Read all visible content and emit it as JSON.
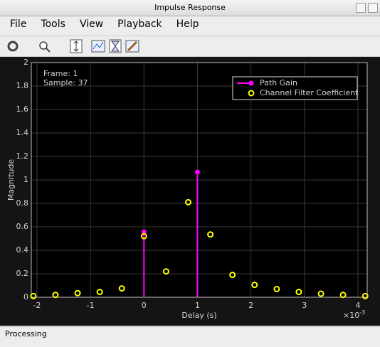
{
  "window": {
    "title": "Impulse Response",
    "menu": [
      "File",
      "Tools",
      "View",
      "Playback",
      "Help"
    ],
    "status": "Processing"
  },
  "chart_data": {
    "type": "stem",
    "x_label": "Delay (s)",
    "y_label": "Magnitude",
    "x_exponent_base": "×10",
    "x_exponent_power": "-3",
    "annotations": [
      "Frame: 1",
      "Sample: 37"
    ],
    "series": [
      {
        "name": "Path Gain",
        "color": "#ff00ff",
        "style": "stem",
        "x": [
          0,
          1
        ],
        "values": [
          0.557,
          1.067
        ]
      },
      {
        "name": "Channel Filter Coefficient",
        "color": "#ffff00",
        "style": "marker",
        "x": [
          -2.068,
          -1.654,
          -1.241,
          -0.827,
          -0.414,
          0,
          0.414,
          0.827,
          1.241,
          1.654,
          2.068,
          2.482,
          2.895,
          3.309,
          3.722,
          4.136
        ],
        "values": [
          0.01,
          0.02,
          0.035,
          0.045,
          0.075,
          0.52,
          0.22,
          0.81,
          0.535,
          0.19,
          0.105,
          0.07,
          0.045,
          0.03,
          0.02,
          0.01
        ]
      }
    ],
    "xlim": [
      -2.106,
      4.173
    ],
    "ylim": [
      0,
      2
    ],
    "xticks": [
      -2,
      -1,
      0,
      1,
      2,
      3,
      4
    ],
    "yticks": [
      0,
      0.2,
      0.4,
      0.6,
      0.8,
      1,
      1.2,
      1.4,
      1.6,
      1.8,
      2
    ],
    "grid": true,
    "legend": "top-right"
  }
}
